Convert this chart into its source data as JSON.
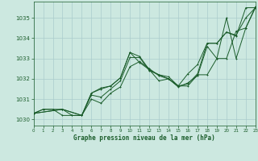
{
  "background_color": "#cce8e0",
  "grid_color": "#aacccc",
  "line_color": "#1a5c2a",
  "title": "Graphe pression niveau de la mer (hPa)",
  "xlim": [
    0,
    23
  ],
  "ylim": [
    1029.7,
    1035.8
  ],
  "yticks": [
    1030,
    1031,
    1032,
    1033,
    1034,
    1035
  ],
  "xticks": [
    0,
    1,
    2,
    3,
    4,
    5,
    6,
    7,
    8,
    9,
    10,
    11,
    12,
    13,
    14,
    15,
    16,
    17,
    18,
    19,
    20,
    21,
    22,
    23
  ],
  "lines": [
    {
      "x": [
        0,
        1,
        2,
        3,
        4,
        5,
        6,
        7,
        8,
        9,
        10,
        11,
        12,
        13,
        14,
        15,
        16,
        17,
        18,
        19,
        20,
        21,
        22,
        23
      ],
      "y": [
        1030.3,
        1030.5,
        1030.5,
        1030.5,
        1030.2,
        1030.2,
        1031.2,
        1031.1,
        1031.5,
        1031.9,
        1033.05,
        1033.05,
        1032.4,
        1032.2,
        1032.0,
        1031.6,
        1031.8,
        1032.15,
        1033.6,
        1033.0,
        1035.0,
        1033.0,
        1034.5,
        1035.5
      ]
    },
    {
      "x": [
        0,
        1,
        2,
        3,
        4,
        5,
        6,
        7,
        8,
        9,
        10,
        11,
        12,
        13,
        14,
        15,
        16,
        17,
        18,
        19,
        20,
        21,
        22,
        23
      ],
      "y": [
        1030.3,
        1030.5,
        1030.5,
        1030.2,
        1030.2,
        1030.2,
        1031.0,
        1030.8,
        1031.3,
        1031.6,
        1032.6,
        1032.85,
        1032.5,
        1032.15,
        1032.0,
        1031.65,
        1031.75,
        1032.25,
        1033.75,
        1033.75,
        1034.3,
        1034.1,
        1035.5,
        1035.5
      ]
    },
    {
      "x": [
        0,
        3,
        5,
        6,
        7,
        8,
        9,
        10,
        11,
        12,
        13,
        14,
        15,
        16,
        17,
        18,
        19,
        20,
        21,
        22,
        23
      ],
      "y": [
        1030.3,
        1030.5,
        1030.2,
        1031.3,
        1031.5,
        1031.65,
        1032.05,
        1033.3,
        1032.8,
        1032.45,
        1032.2,
        1032.1,
        1031.65,
        1032.25,
        1032.7,
        1033.75,
        1033.75,
        1034.3,
        1034.15,
        1035.0,
        1035.5
      ]
    },
    {
      "x": [
        0,
        3,
        5,
        6,
        7,
        8,
        9,
        10,
        11,
        12,
        13,
        14,
        15,
        16,
        17,
        18,
        19,
        20,
        21,
        22,
        23
      ],
      "y": [
        1030.3,
        1030.5,
        1030.2,
        1031.3,
        1031.55,
        1031.65,
        1032.05,
        1033.3,
        1033.1,
        1032.45,
        1031.9,
        1032.0,
        1031.65,
        1031.65,
        1032.2,
        1032.2,
        1033.0,
        1033.0,
        1034.35,
        1034.5,
        1035.55
      ]
    }
  ]
}
